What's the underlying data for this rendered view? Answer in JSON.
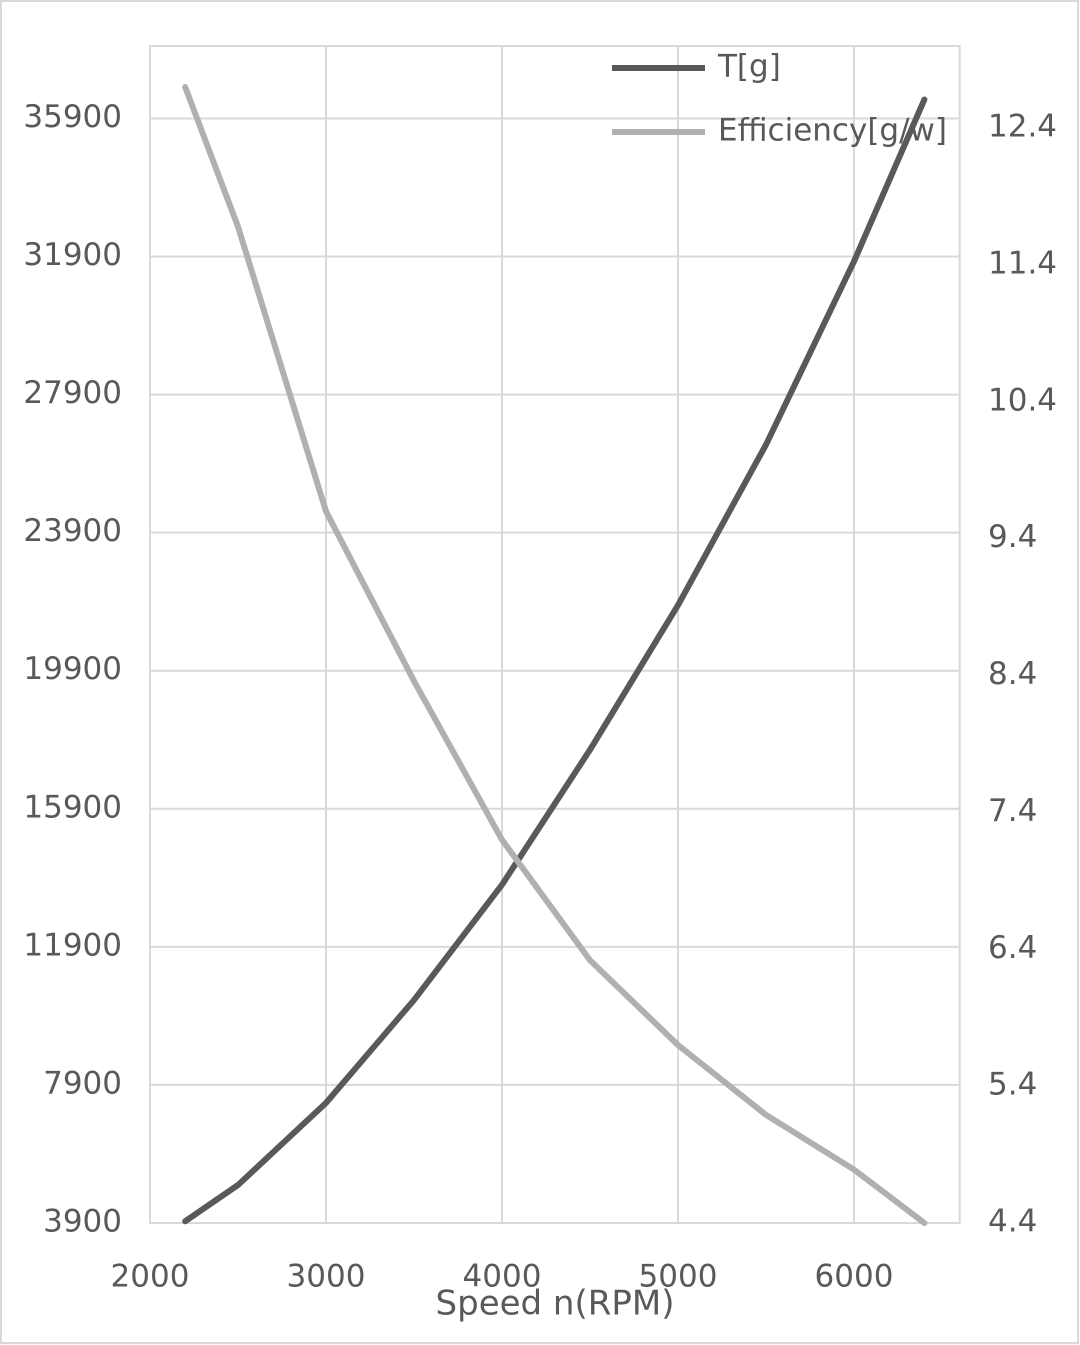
{
  "chart_data": {
    "type": "line",
    "x_label": "Speed n(RPM)",
    "x": [
      2200,
      2500,
      3000,
      3500,
      4000,
      4500,
      5000,
      5500,
      6000,
      6400
    ],
    "series": [
      {
        "name": "T[g]",
        "color": "#595959",
        "values": [
          3950,
          5000,
          7380,
          10360,
          13700,
          17610,
          21800,
          26450,
          31760,
          36450
        ]
      },
      {
        "name": "Efficiency[g/w]",
        "color": "#b0b0b0",
        "axis": "y2",
        "values": [
          12.7,
          11.68,
          9.6,
          8.36,
          7.2,
          6.32,
          5.7,
          5.19,
          4.79,
          4.4
        ]
      }
    ],
    "xlim": [
      2000,
      6600
    ],
    "xticks": [
      2000,
      3000,
      4000,
      5000,
      6000
    ],
    "ylim": [
      3900,
      38000
    ],
    "yticks": [
      3900,
      7900,
      11900,
      15900,
      19900,
      23900,
      27900,
      31900,
      35900
    ],
    "y2lim": [
      4.4,
      13.0
    ],
    "y2ticks": [
      4.4,
      5.4,
      6.4,
      7.4,
      8.4,
      9.4,
      10.4,
      11.4,
      12.4
    ],
    "grid": true,
    "legend": "top-right"
  }
}
